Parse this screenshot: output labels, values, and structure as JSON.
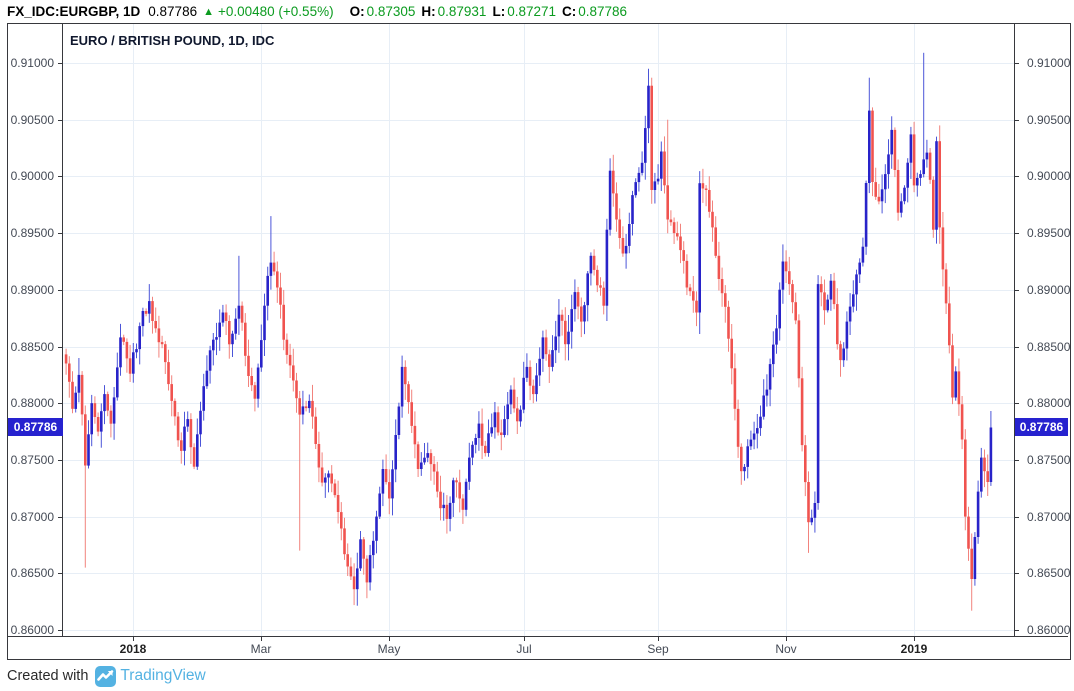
{
  "header": {
    "symbol": "FX_IDC:EURGBP, 1D",
    "last": "0.87786",
    "change_arrow": "▲",
    "change": "+0.00480 (+0.55%)",
    "open_label": "O:",
    "open_value": "0.87305",
    "high_label": "H:",
    "high_value": "0.87931",
    "low_label": "L:",
    "low_value": "0.87271",
    "close_label": "C:",
    "close_value": "0.87786"
  },
  "chart": {
    "title": "EURO / BRITISH POUND, 1D, IDC"
  },
  "footer": {
    "created_with": "Created with",
    "brand": "TradingView"
  },
  "colors": {
    "up": "#2823c9",
    "up_wick": "#4b55d8",
    "down": "#f0534f",
    "down_wick": "#f2837d",
    "grid": "#e7eef6",
    "frame": "#37383d",
    "axis_text": "#444a55",
    "green": "#0b9b1f",
    "badge_bg": "#2622cf",
    "brand_blue": "#54b2e2"
  },
  "chart_data": {
    "type": "candlestick",
    "symbol": "FX_IDC:EURGBP",
    "interval": "1D",
    "exchange": "IDC",
    "title": "EURO / BRITISH POUND, 1D, IDC",
    "last_price": 0.87786,
    "last_candle_ohlc": {
      "open": 0.87305,
      "high": 0.87931,
      "low": 0.87271,
      "close": 0.87786
    },
    "change_abs": 0.0048,
    "change_pct": 0.55,
    "y_axis": {
      "min": 0.86,
      "max": 0.91,
      "tick_step": 0.005,
      "ticks": [
        0.91,
        0.905,
        0.9,
        0.895,
        0.89,
        0.885,
        0.88,
        0.875,
        0.87,
        0.865,
        0.86
      ]
    },
    "x_axis": {
      "ticks": [
        {
          "label": "2018",
          "i": 21,
          "bold": true
        },
        {
          "label": "Mar",
          "i": 61,
          "bold": false
        },
        {
          "label": "May",
          "i": 101,
          "bold": false
        },
        {
          "label": "Jul",
          "i": 143,
          "bold": false
        },
        {
          "label": "Sep",
          "i": 185,
          "bold": false
        },
        {
          "label": "Nov",
          "i": 225,
          "bold": false
        },
        {
          "label": "2019",
          "i": 265,
          "bold": true
        }
      ]
    },
    "noise": 0.0016,
    "close_anchors": [
      [
        0,
        0.8835
      ],
      [
        2,
        0.8795
      ],
      [
        4,
        0.8825
      ],
      [
        6,
        0.8745
      ],
      [
        8,
        0.88
      ],
      [
        10,
        0.8775
      ],
      [
        12,
        0.8808
      ],
      [
        14,
        0.8782
      ],
      [
        17,
        0.8858
      ],
      [
        20,
        0.8826
      ],
      [
        23,
        0.8868
      ],
      [
        26,
        0.889
      ],
      [
        28,
        0.8866
      ],
      [
        30,
        0.8852
      ],
      [
        33,
        0.8802
      ],
      [
        36,
        0.8758
      ],
      [
        38,
        0.8786
      ],
      [
        40,
        0.8744
      ],
      [
        43,
        0.8815
      ],
      [
        46,
        0.8856
      ],
      [
        49,
        0.888
      ],
      [
        51,
        0.8852
      ],
      [
        54,
        0.8886
      ],
      [
        57,
        0.8824
      ],
      [
        59,
        0.8804
      ],
      [
        62,
        0.8886
      ],
      [
        64,
        0.8924
      ],
      [
        66,
        0.8902
      ],
      [
        68,
        0.8856
      ],
      [
        71,
        0.882
      ],
      [
        73,
        0.879
      ],
      [
        76,
        0.8802
      ],
      [
        78,
        0.8764
      ],
      [
        80,
        0.873
      ],
      [
        82,
        0.8738
      ],
      [
        85,
        0.8704
      ],
      [
        88,
        0.8656
      ],
      [
        90,
        0.8636
      ],
      [
        92,
        0.868
      ],
      [
        94,
        0.8642
      ],
      [
        97,
        0.87
      ],
      [
        99,
        0.8742
      ],
      [
        101,
        0.8716
      ],
      [
        103,
        0.8772
      ],
      [
        105,
        0.8832
      ],
      [
        108,
        0.878
      ],
      [
        110,
        0.8742
      ],
      [
        113,
        0.8756
      ],
      [
        116,
        0.8722
      ],
      [
        119,
        0.8698
      ],
      [
        121,
        0.8732
      ],
      [
        124,
        0.8706
      ],
      [
        126,
        0.8752
      ],
      [
        129,
        0.8782
      ],
      [
        131,
        0.8756
      ],
      [
        134,
        0.8792
      ],
      [
        136,
        0.8772
      ],
      [
        139,
        0.8812
      ],
      [
        141,
        0.8784
      ],
      [
        144,
        0.8832
      ],
      [
        146,
        0.8808
      ],
      [
        149,
        0.8858
      ],
      [
        151,
        0.8832
      ],
      [
        154,
        0.8878
      ],
      [
        156,
        0.8852
      ],
      [
        159,
        0.8898
      ],
      [
        161,
        0.8872
      ],
      [
        164,
        0.893
      ],
      [
        166,
        0.8904
      ],
      [
        168,
        0.8886
      ],
      [
        170,
        0.9005
      ],
      [
        171,
        0.8985
      ],
      [
        172,
        0.8962
      ],
      [
        174,
        0.8932
      ],
      [
        176,
        0.8958
      ],
      [
        178,
        0.8995
      ],
      [
        180,
        0.9012
      ],
      [
        182,
        0.908
      ],
      [
        183,
        0.8988
      ],
      [
        185,
        0.8998
      ],
      [
        186,
        0.9022
      ],
      [
        188,
        0.8962
      ],
      [
        190,
        0.895
      ],
      [
        192,
        0.8935
      ],
      [
        194,
        0.8902
      ],
      [
        197,
        0.888
      ],
      [
        198,
        0.8994
      ],
      [
        200,
        0.8988
      ],
      [
        203,
        0.893
      ],
      [
        206,
        0.8885
      ],
      [
        209,
        0.8795
      ],
      [
        211,
        0.874
      ],
      [
        213,
        0.8762
      ],
      [
        216,
        0.8778
      ],
      [
        219,
        0.8812
      ],
      [
        222,
        0.8866
      ],
      [
        224,
        0.8925
      ],
      [
        226,
        0.8905
      ],
      [
        228,
        0.8873
      ],
      [
        230,
        0.8763
      ],
      [
        232,
        0.8695
      ],
      [
        234,
        0.8712
      ],
      [
        235,
        0.8905
      ],
      [
        237,
        0.8882
      ],
      [
        239,
        0.8908
      ],
      [
        241,
        0.8852
      ],
      [
        242,
        0.8838
      ],
      [
        244,
        0.8872
      ],
      [
        246,
        0.8896
      ],
      [
        248,
        0.8924
      ],
      [
        249,
        0.8938
      ],
      [
        251,
        0.9058
      ],
      [
        252,
        0.8995
      ],
      [
        254,
        0.8978
      ],
      [
        256,
        0.9002
      ],
      [
        258,
        0.9041
      ],
      [
        260,
        0.8968
      ],
      [
        262,
        0.899
      ],
      [
        264,
        0.9037
      ],
      [
        265,
        0.8992
      ],
      [
        267,
        0.9002
      ],
      [
        268,
        0.9015
      ],
      [
        269,
        0.9021
      ],
      [
        270,
        0.8997
      ],
      [
        271,
        0.8953
      ],
      [
        272,
        0.9031
      ],
      [
        273,
        0.8955
      ],
      [
        275,
        0.8888
      ],
      [
        277,
        0.8805
      ],
      [
        278,
        0.8828
      ],
      [
        280,
        0.8768
      ],
      [
        281,
        0.87
      ],
      [
        283,
        0.8645
      ],
      [
        284,
        0.8682
      ],
      [
        286,
        0.8752
      ],
      [
        287,
        0.874
      ],
      [
        288,
        0.87305
      ],
      [
        289,
        0.87786
      ]
    ],
    "spikes_high": [
      [
        26,
        0.8905
      ],
      [
        54,
        0.893
      ],
      [
        64,
        0.8965
      ],
      [
        105,
        0.8842
      ],
      [
        170,
        0.9016
      ],
      [
        182,
        0.9095
      ],
      [
        188,
        0.905
      ],
      [
        224,
        0.894
      ],
      [
        251,
        0.9087
      ],
      [
        268,
        0.9109
      ],
      [
        273,
        0.9045
      ],
      [
        289,
        0.87931
      ]
    ],
    "spikes_low": [
      [
        6,
        0.8655
      ],
      [
        73,
        0.867
      ],
      [
        90,
        0.8622
      ],
      [
        94,
        0.8628
      ],
      [
        119,
        0.8685
      ],
      [
        198,
        0.8861
      ],
      [
        211,
        0.8728
      ],
      [
        232,
        0.8668
      ],
      [
        283,
        0.8617
      ],
      [
        289,
        0.87271
      ]
    ]
  }
}
